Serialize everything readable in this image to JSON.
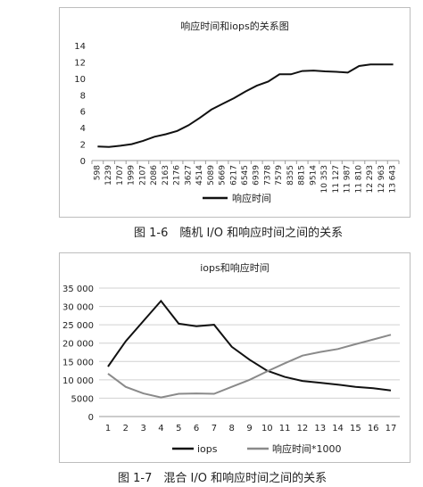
{
  "chart_data": [
    {
      "type": "line",
      "title": "响应时间和iops的关系图",
      "xlabel": "",
      "ylabel": "",
      "ylim": [
        0,
        14
      ],
      "yticks": [
        0,
        2,
        4,
        6,
        8,
        10,
        12,
        14
      ],
      "grid": false,
      "legend": "bottom",
      "categories": [
        "598",
        "1239",
        "1707",
        "1999",
        "2107",
        "2086",
        "2163",
        "2176",
        "3627",
        "4514",
        "5089",
        "5669",
        "6217",
        "6545",
        "6939",
        "7378",
        "7579",
        "8355",
        "8815",
        "9514",
        "10 353",
        "11 127",
        "11 987",
        "11 810",
        "12 293",
        "12 963",
        "13 643"
      ],
      "series": [
        {
          "name": "响应时间",
          "color": "#111111",
          "values": [
            1.7,
            1.65,
            1.8,
            2.0,
            2.4,
            2.9,
            3.2,
            3.6,
            4.3,
            5.2,
            6.2,
            6.9,
            7.6,
            8.4,
            9.1,
            9.6,
            10.5,
            10.5,
            10.9,
            10.95,
            10.85,
            10.8,
            10.7,
            11.5,
            11.7,
            11.7,
            11.7
          ]
        }
      ]
    },
    {
      "type": "line",
      "title": "iops和响应时间",
      "xlabel": "",
      "ylabel": "",
      "ylim": [
        0,
        35000
      ],
      "yticks": [
        0,
        5000,
        10000,
        15000,
        20000,
        25000,
        30000,
        35000
      ],
      "ytick_labels": [
        "0",
        "5000",
        "10 000",
        "15 000",
        "20 000",
        "25 000",
        "30 000",
        "35 000"
      ],
      "grid": true,
      "legend": "bottom",
      "categories": [
        "1",
        "2",
        "3",
        "4",
        "5",
        "6",
        "7",
        "8",
        "9",
        "10",
        "11",
        "12",
        "13",
        "14",
        "15",
        "16",
        "17"
      ],
      "series": [
        {
          "name": "iops",
          "color": "#111111",
          "values": [
            13600,
            20500,
            26000,
            31500,
            25300,
            24600,
            25000,
            19000,
            15500,
            12500,
            10800,
            9700,
            9200,
            8700,
            8100,
            7700,
            7100
          ]
        },
        {
          "name": "响应时间*1000",
          "color": "#8a8a8a",
          "values": [
            11700,
            8100,
            6300,
            5200,
            6200,
            6300,
            6200,
            8100,
            10000,
            12300,
            14500,
            16600,
            17600,
            18400,
            19700,
            21000,
            22300
          ]
        }
      ]
    }
  ],
  "captions": {
    "fig1": "图 1-6　随机 I/O 和响应时间之间的关系",
    "fig2": "图 1-7　混合 I/O 和响应时间之间的关系"
  }
}
